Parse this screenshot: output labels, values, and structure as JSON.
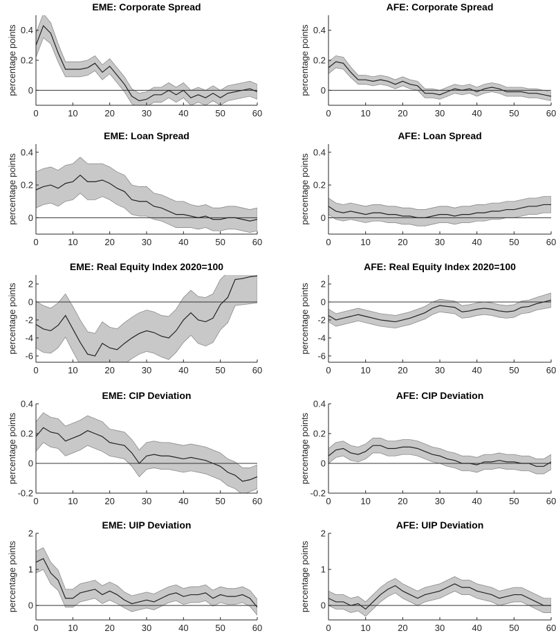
{
  "chart_data": [
    {
      "type": "line",
      "title": "EME: Corporate Spread",
      "ylabel": "percentage points",
      "x": [
        0,
        2,
        4,
        6,
        8,
        10,
        12,
        14,
        16,
        18,
        20,
        22,
        24,
        26,
        28,
        30,
        32,
        34,
        36,
        38,
        40,
        42,
        44,
        46,
        48,
        50,
        52,
        54,
        56,
        58,
        60
      ],
      "values": [
        0.3,
        0.43,
        0.38,
        0.25,
        0.14,
        0.14,
        0.14,
        0.15,
        0.18,
        0.12,
        0.16,
        0.1,
        0.04,
        -0.04,
        -0.07,
        -0.06,
        -0.03,
        -0.03,
        0.0,
        -0.03,
        0.0,
        -0.05,
        -0.03,
        -0.05,
        -0.02,
        -0.05,
        -0.02,
        -0.01,
        0.0,
        0.01,
        -0.01
      ],
      "errors": [
        0.08,
        0.08,
        0.07,
        0.06,
        0.05,
        0.05,
        0.05,
        0.05,
        0.05,
        0.05,
        0.05,
        0.05,
        0.05,
        0.05,
        0.05,
        0.05,
        0.05,
        0.05,
        0.05,
        0.05,
        0.05,
        0.05,
        0.05,
        0.05,
        0.05,
        0.05,
        0.05,
        0.05,
        0.05,
        0.05,
        0.05
      ],
      "color": "#222222",
      "band_color": "#c8c8c8",
      "hline": 0,
      "xlim": [
        0,
        60
      ],
      "xticks": [
        0,
        10,
        20,
        30,
        40,
        50,
        60
      ],
      "ylim": [
        -0.1,
        0.5
      ],
      "yticks": [
        0,
        0.2,
        0.4
      ]
    },
    {
      "type": "line",
      "title": "AFE: Corporate Spread",
      "ylabel": "percentage points",
      "x": [
        0,
        2,
        4,
        6,
        8,
        10,
        12,
        14,
        16,
        18,
        20,
        22,
        24,
        26,
        28,
        30,
        32,
        34,
        36,
        38,
        40,
        42,
        44,
        46,
        48,
        50,
        52,
        54,
        56,
        58,
        60
      ],
      "values": [
        0.15,
        0.19,
        0.18,
        0.12,
        0.07,
        0.07,
        0.06,
        0.07,
        0.06,
        0.04,
        0.06,
        0.04,
        0.03,
        -0.02,
        -0.02,
        -0.03,
        -0.01,
        0.01,
        0.0,
        0.01,
        -0.01,
        0.01,
        0.02,
        0.01,
        -0.01,
        -0.01,
        -0.01,
        -0.02,
        -0.02,
        -0.03,
        -0.04
      ],
      "errors": [
        0.04,
        0.04,
        0.04,
        0.035,
        0.03,
        0.03,
        0.03,
        0.03,
        0.03,
        0.03,
        0.03,
        0.03,
        0.03,
        0.03,
        0.03,
        0.03,
        0.03,
        0.03,
        0.03,
        0.03,
        0.03,
        0.03,
        0.03,
        0.03,
        0.03,
        0.03,
        0.03,
        0.03,
        0.03,
        0.03,
        0.03
      ],
      "color": "#222222",
      "band_color": "#c8c8c8",
      "hline": 0,
      "xlim": [
        0,
        60
      ],
      "xticks": [
        0,
        10,
        20,
        30,
        40,
        50,
        60
      ],
      "ylim": [
        -0.1,
        0.5
      ],
      "yticks": [
        0,
        0.2,
        0.4
      ]
    },
    {
      "type": "line",
      "title": "EME: Loan Spread",
      "ylabel": "percentage points",
      "x": [
        0,
        2,
        4,
        6,
        8,
        10,
        12,
        14,
        16,
        18,
        20,
        22,
        24,
        26,
        28,
        30,
        32,
        34,
        36,
        38,
        40,
        42,
        44,
        46,
        48,
        50,
        52,
        54,
        56,
        58,
        60
      ],
      "values": [
        0.17,
        0.19,
        0.2,
        0.18,
        0.21,
        0.22,
        0.26,
        0.22,
        0.22,
        0.23,
        0.21,
        0.18,
        0.16,
        0.11,
        0.1,
        0.1,
        0.07,
        0.06,
        0.04,
        0.02,
        0.02,
        0.01,
        0.0,
        0.01,
        -0.01,
        -0.01,
        0.0,
        0.0,
        -0.01,
        -0.02,
        -0.01
      ],
      "errors": [
        0.11,
        0.11,
        0.11,
        0.11,
        0.11,
        0.11,
        0.11,
        0.11,
        0.11,
        0.1,
        0.1,
        0.1,
        0.1,
        0.09,
        0.09,
        0.09,
        0.08,
        0.08,
        0.08,
        0.08,
        0.08,
        0.07,
        0.07,
        0.07,
        0.07,
        0.07,
        0.07,
        0.07,
        0.07,
        0.07,
        0.07
      ],
      "color": "#222222",
      "band_color": "#c8c8c8",
      "hline": 0,
      "xlim": [
        0,
        60
      ],
      "xticks": [
        0,
        10,
        20,
        30,
        40,
        50,
        60
      ],
      "ylim": [
        -0.1,
        0.45
      ],
      "yticks": [
        0,
        0.2,
        0.4
      ]
    },
    {
      "type": "line",
      "title": "AFE: Loan Spread",
      "ylabel": "percentage points",
      "x": [
        0,
        2,
        4,
        6,
        8,
        10,
        12,
        14,
        16,
        18,
        20,
        22,
        24,
        26,
        28,
        30,
        32,
        34,
        36,
        38,
        40,
        42,
        44,
        46,
        48,
        50,
        52,
        54,
        56,
        58,
        60
      ],
      "values": [
        0.07,
        0.04,
        0.03,
        0.04,
        0.03,
        0.02,
        0.03,
        0.03,
        0.02,
        0.02,
        0.01,
        0.01,
        0.0,
        0.0,
        0.01,
        0.02,
        0.02,
        0.01,
        0.02,
        0.02,
        0.03,
        0.03,
        0.04,
        0.04,
        0.05,
        0.05,
        0.06,
        0.07,
        0.07,
        0.08,
        0.08
      ],
      "errors": [
        0.05,
        0.05,
        0.05,
        0.05,
        0.05,
        0.05,
        0.05,
        0.05,
        0.05,
        0.05,
        0.05,
        0.05,
        0.05,
        0.05,
        0.05,
        0.05,
        0.05,
        0.05,
        0.05,
        0.05,
        0.05,
        0.05,
        0.05,
        0.05,
        0.05,
        0.05,
        0.05,
        0.05,
        0.05,
        0.05,
        0.05
      ],
      "color": "#222222",
      "band_color": "#c8c8c8",
      "hline": 0,
      "xlim": [
        0,
        60
      ],
      "xticks": [
        0,
        10,
        20,
        30,
        40,
        50,
        60
      ],
      "ylim": [
        -0.1,
        0.45
      ],
      "yticks": [
        0,
        0.2,
        0.4
      ]
    },
    {
      "type": "line",
      "title": "EME: Real Equity Index 2020=100",
      "ylabel": "percentage points",
      "x": [
        0,
        2,
        4,
        6,
        8,
        10,
        12,
        14,
        16,
        18,
        20,
        22,
        24,
        26,
        28,
        30,
        32,
        34,
        36,
        38,
        40,
        42,
        44,
        46,
        48,
        50,
        52,
        54,
        56,
        58,
        60
      ],
      "values": [
        -2.5,
        -3,
        -3.2,
        -2.6,
        -1.5,
        -3,
        -4.5,
        -5.8,
        -6,
        -4.6,
        -5.1,
        -5.3,
        -4.6,
        -4,
        -3.5,
        -3.2,
        -3.4,
        -3.8,
        -4,
        -3.2,
        -2,
        -1.2,
        -2,
        -2.2,
        -1.8,
        -0.3,
        0.5,
        2.5,
        2.6,
        2.8,
        2.9
      ],
      "errors": [
        2.6,
        2.6,
        2.5,
        2.5,
        2.4,
        2.5,
        2.5,
        2.5,
        2.5,
        2.4,
        2.3,
        2.3,
        2.3,
        2.3,
        2.3,
        2.3,
        2.3,
        2.3,
        2.4,
        2.4,
        2.5,
        2.5,
        2.6,
        2.7,
        2.7,
        2.8,
        2.8,
        2.9,
        2.9,
        3,
        3
      ],
      "color": "#222222",
      "band_color": "#c8c8c8",
      "hline": 0,
      "xlim": [
        0,
        60
      ],
      "xticks": [
        0,
        10,
        20,
        30,
        40,
        50,
        60
      ],
      "ylim": [
        -6.7,
        3
      ],
      "yticks": [
        -6,
        -4,
        -2,
        0,
        2
      ]
    },
    {
      "type": "line",
      "title": "AFE: Real Equity Index 2020=100",
      "ylabel": "percentage points",
      "x": [
        0,
        2,
        4,
        6,
        8,
        10,
        12,
        14,
        16,
        18,
        20,
        22,
        24,
        26,
        28,
        30,
        32,
        34,
        36,
        38,
        40,
        42,
        44,
        46,
        48,
        50,
        52,
        54,
        56,
        58,
        60
      ],
      "values": [
        -1.5,
        -2,
        -1.8,
        -1.6,
        -1.4,
        -1.6,
        -1.8,
        -2,
        -2.1,
        -2.2,
        -2,
        -1.8,
        -1.5,
        -1.2,
        -0.7,
        -0.4,
        -0.5,
        -0.6,
        -1.1,
        -1.0,
        -0.8,
        -0.7,
        -0.8,
        -1.0,
        -1.1,
        -1.0,
        -0.6,
        -0.5,
        -0.2,
        0.0,
        0.2
      ],
      "errors": [
        0.7,
        0.7,
        0.7,
        0.7,
        0.7,
        0.7,
        0.7,
        0.7,
        0.7,
        0.7,
        0.7,
        0.7,
        0.7,
        0.7,
        0.7,
        0.7,
        0.7,
        0.7,
        0.7,
        0.7,
        0.7,
        0.7,
        0.7,
        0.7,
        0.7,
        0.7,
        0.7,
        0.7,
        0.7,
        0.75,
        0.8
      ],
      "color": "#222222",
      "band_color": "#c8c8c8",
      "hline": 0,
      "xlim": [
        0,
        60
      ],
      "xticks": [
        0,
        10,
        20,
        30,
        40,
        50,
        60
      ],
      "ylim": [
        -6.7,
        3
      ],
      "yticks": [
        -6,
        -4,
        -2,
        0,
        2
      ]
    },
    {
      "type": "line",
      "title": "EME: CIP Deviation",
      "ylabel": "percentage points",
      "x": [
        0,
        2,
        4,
        6,
        8,
        10,
        12,
        14,
        16,
        18,
        20,
        22,
        24,
        26,
        28,
        30,
        32,
        34,
        36,
        38,
        40,
        42,
        44,
        46,
        48,
        50,
        52,
        54,
        56,
        58,
        60
      ],
      "values": [
        0.18,
        0.24,
        0.21,
        0.2,
        0.15,
        0.17,
        0.19,
        0.22,
        0.2,
        0.18,
        0.14,
        0.13,
        0.12,
        0.07,
        0.0,
        0.05,
        0.06,
        0.05,
        0.05,
        0.04,
        0.03,
        0.04,
        0.03,
        0.02,
        0.0,
        -0.02,
        -0.06,
        -0.08,
        -0.12,
        -0.11,
        -0.09
      ],
      "errors": [
        0.1,
        0.1,
        0.1,
        0.1,
        0.1,
        0.1,
        0.1,
        0.1,
        0.1,
        0.1,
        0.09,
        0.09,
        0.09,
        0.09,
        0.09,
        0.09,
        0.09,
        0.09,
        0.09,
        0.09,
        0.09,
        0.09,
        0.09,
        0.09,
        0.09,
        0.09,
        0.09,
        0.09,
        0.09,
        0.08,
        0.08
      ],
      "color": "#222222",
      "band_color": "#c8c8c8",
      "hline": 0,
      "xlim": [
        0,
        60
      ],
      "xticks": [
        0,
        10,
        20,
        30,
        40,
        50,
        60
      ],
      "ylim": [
        -0.2,
        0.4
      ],
      "yticks": [
        -0.2,
        0,
        0.2,
        0.4
      ]
    },
    {
      "type": "line",
      "title": "AFE: CIP Deviation",
      "ylabel": "percentage points",
      "x": [
        0,
        2,
        4,
        6,
        8,
        10,
        12,
        14,
        16,
        18,
        20,
        22,
        24,
        26,
        28,
        30,
        32,
        34,
        36,
        38,
        40,
        42,
        44,
        46,
        48,
        50,
        52,
        54,
        56,
        58,
        60
      ],
      "values": [
        0.05,
        0.09,
        0.1,
        0.07,
        0.06,
        0.08,
        0.12,
        0.12,
        0.1,
        0.1,
        0.11,
        0.11,
        0.1,
        0.08,
        0.06,
        0.05,
        0.03,
        0.02,
        0.0,
        0.0,
        -0.01,
        0.01,
        0.01,
        0.02,
        0.01,
        0.01,
        0.0,
        0.0,
        -0.02,
        -0.02,
        0.01
      ],
      "errors": [
        0.05,
        0.05,
        0.05,
        0.05,
        0.05,
        0.05,
        0.05,
        0.05,
        0.05,
        0.05,
        0.05,
        0.05,
        0.05,
        0.05,
        0.05,
        0.05,
        0.05,
        0.05,
        0.05,
        0.05,
        0.05,
        0.05,
        0.05,
        0.05,
        0.05,
        0.05,
        0.05,
        0.05,
        0.05,
        0.05,
        0.05
      ],
      "color": "#222222",
      "band_color": "#c8c8c8",
      "hline": 0,
      "xlim": [
        0,
        60
      ],
      "xticks": [
        0,
        10,
        20,
        30,
        40,
        50,
        60
      ],
      "ylim": [
        -0.2,
        0.4
      ],
      "yticks": [
        -0.2,
        0,
        0.2,
        0.4
      ]
    },
    {
      "type": "line",
      "title": "EME: UIP Deviation",
      "ylabel": "percentage points",
      "x": [
        0,
        2,
        4,
        6,
        8,
        10,
        12,
        14,
        16,
        18,
        20,
        22,
        24,
        26,
        28,
        30,
        32,
        34,
        36,
        38,
        40,
        42,
        44,
        46,
        48,
        50,
        52,
        54,
        56,
        58,
        60
      ],
      "values": [
        1.2,
        1.3,
        0.9,
        0.7,
        0.2,
        0.2,
        0.35,
        0.4,
        0.45,
        0.3,
        0.4,
        0.3,
        0.15,
        0.05,
        0.1,
        0.15,
        0.1,
        0.2,
        0.3,
        0.35,
        0.25,
        0.3,
        0.3,
        0.35,
        0.2,
        0.3,
        0.25,
        0.25,
        0.3,
        0.2,
        -0.05
      ],
      "errors": [
        0.3,
        0.3,
        0.3,
        0.28,
        0.25,
        0.25,
        0.25,
        0.25,
        0.25,
        0.25,
        0.25,
        0.25,
        0.22,
        0.22,
        0.22,
        0.22,
        0.22,
        0.22,
        0.22,
        0.22,
        0.22,
        0.22,
        0.22,
        0.22,
        0.22,
        0.22,
        0.22,
        0.22,
        0.22,
        0.22,
        0.22
      ],
      "color": "#222222",
      "band_color": "#c8c8c8",
      "hline": 0,
      "xlim": [
        0,
        60
      ],
      "xticks": [
        0,
        10,
        20,
        30,
        40,
        50,
        60
      ],
      "ylim": [
        -0.4,
        2
      ],
      "yticks": [
        0,
        1,
        2
      ]
    },
    {
      "type": "line",
      "title": "AFE: UIP Deviation",
      "ylabel": "percentage points",
      "x": [
        0,
        2,
        4,
        6,
        8,
        10,
        12,
        14,
        16,
        18,
        20,
        22,
        24,
        26,
        28,
        30,
        32,
        34,
        36,
        38,
        40,
        42,
        44,
        46,
        48,
        50,
        52,
        54,
        56,
        58,
        60
      ],
      "values": [
        0.2,
        0.1,
        0.1,
        0.0,
        0.05,
        -0.1,
        0.1,
        0.3,
        0.45,
        0.55,
        0.4,
        0.3,
        0.2,
        0.3,
        0.35,
        0.4,
        0.5,
        0.6,
        0.5,
        0.5,
        0.4,
        0.35,
        0.3,
        0.2,
        0.25,
        0.3,
        0.3,
        0.2,
        0.1,
        0.0,
        0.0
      ],
      "errors": [
        0.2,
        0.2,
        0.2,
        0.2,
        0.2,
        0.2,
        0.2,
        0.2,
        0.2,
        0.2,
        0.2,
        0.2,
        0.2,
        0.2,
        0.2,
        0.2,
        0.2,
        0.2,
        0.2,
        0.2,
        0.2,
        0.2,
        0.2,
        0.2,
        0.2,
        0.2,
        0.2,
        0.2,
        0.2,
        0.2,
        0.2
      ],
      "color": "#222222",
      "band_color": "#c8c8c8",
      "hline": 0,
      "xlim": [
        0,
        60
      ],
      "xticks": [
        0,
        10,
        20,
        30,
        40,
        50,
        60
      ],
      "ylim": [
        -0.4,
        2
      ],
      "yticks": [
        0,
        1,
        2
      ]
    }
  ]
}
